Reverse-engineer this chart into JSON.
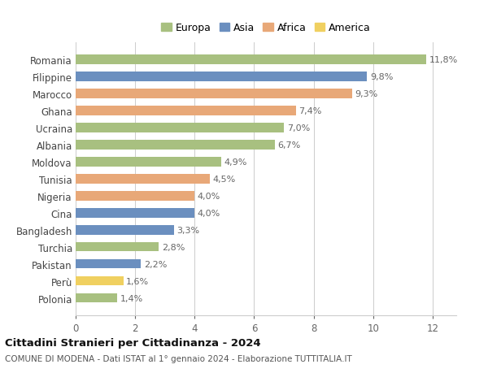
{
  "categories": [
    "Polonia",
    "Perù",
    "Pakistan",
    "Turchia",
    "Bangladesh",
    "Cina",
    "Nigeria",
    "Tunisia",
    "Moldova",
    "Albania",
    "Ucraina",
    "Ghana",
    "Marocco",
    "Filippine",
    "Romania"
  ],
  "values": [
    1.4,
    1.6,
    2.2,
    2.8,
    3.3,
    4.0,
    4.0,
    4.5,
    4.9,
    6.7,
    7.0,
    7.4,
    9.3,
    9.8,
    11.8
  ],
  "labels": [
    "1,4%",
    "1,6%",
    "2,2%",
    "2,8%",
    "3,3%",
    "4,0%",
    "4,0%",
    "4,5%",
    "4,9%",
    "6,7%",
    "7,0%",
    "7,4%",
    "9,3%",
    "9,8%",
    "11,8%"
  ],
  "continents": [
    "Europa",
    "America",
    "Asia",
    "Europa",
    "Asia",
    "Asia",
    "Africa",
    "Africa",
    "Europa",
    "Europa",
    "Europa",
    "Africa",
    "Africa",
    "Asia",
    "Europa"
  ],
  "continent_colors": {
    "Europa": "#a8c080",
    "Asia": "#6b8fbf",
    "Africa": "#e8a878",
    "America": "#f0d060"
  },
  "legend_labels": [
    "Europa",
    "Asia",
    "Africa",
    "America"
  ],
  "legend_colors": [
    "#a8c080",
    "#6b8fbf",
    "#e8a878",
    "#f0d060"
  ],
  "title": "Cittadini Stranieri per Cittadinanza - 2024",
  "subtitle": "COMUNE DI MODENA - Dati ISTAT al 1° gennaio 2024 - Elaborazione TUTTITALIA.IT",
  "xlim": [
    0,
    12.8
  ],
  "xticks": [
    0,
    2,
    4,
    6,
    8,
    10,
    12
  ],
  "background_color": "#ffffff",
  "bar_height": 0.55,
  "grid_color": "#cccccc"
}
